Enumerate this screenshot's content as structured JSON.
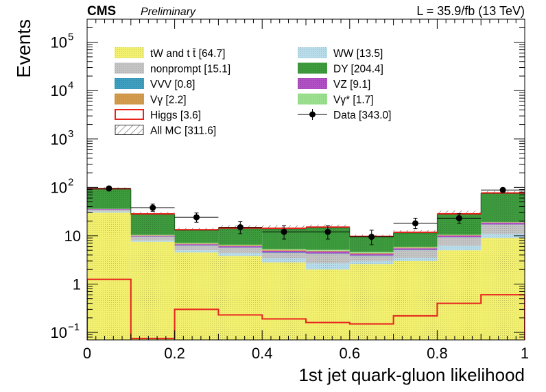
{
  "chart_data": {
    "type": "bar",
    "header_left_bold": "CMS",
    "header_left_italic": "Preliminary",
    "header_right": "L = 35.9/fb (13 TeV)",
    "xlabel": "1st jet quark-gluon likelihood",
    "ylabel": "Events",
    "xlim": [
      0,
      1
    ],
    "ylim": [
      0.07,
      300000
    ],
    "y_scale": "log",
    "x_edges": [
      0,
      0.1,
      0.2,
      0.3,
      0.4,
      0.5,
      0.6,
      0.7,
      0.8,
      0.9,
      1.0
    ],
    "x_ticks": [
      "0",
      "0.2",
      "0.4",
      "0.6",
      "0.8",
      "1"
    ],
    "y_ticks": [
      {
        "value": 0.1,
        "base": "10",
        "exp": "−1"
      },
      {
        "value": 1,
        "base": "1",
        "exp": ""
      },
      {
        "value": 10,
        "base": "10",
        "exp": ""
      },
      {
        "value": 100,
        "base": "10",
        "exp": "2"
      },
      {
        "value": 1000,
        "base": "10",
        "exp": "3"
      },
      {
        "value": 10000,
        "base": "10",
        "exp": "4"
      },
      {
        "value": 100000,
        "base": "10",
        "exp": "5"
      }
    ],
    "stack_series": [
      {
        "name": "tW and t t̄",
        "yield": "[64.7]",
        "color": "#f2f06e",
        "values": [
          30,
          7.5,
          4.5,
          3.8,
          2.8,
          2.0,
          2.6,
          3.0,
          5.0,
          9.0
        ]
      },
      {
        "name": "WW",
        "yield": "[13.5]",
        "color": "#b8dcea",
        "values": [
          1.5,
          0.5,
          0.5,
          0.6,
          0.6,
          0.7,
          0.4,
          0.5,
          1.2,
          2.0
        ]
      },
      {
        "name": "nonprompt",
        "yield": "[15.1]",
        "color": "#c4c4c4",
        "values": [
          3.0,
          1.5,
          1.2,
          1.2,
          1.0,
          1.5,
          0.8,
          1.5,
          3.0,
          6.0
        ]
      },
      {
        "name": "VVV",
        "yield": "[0.8]",
        "color": "#3e9fc0",
        "values": [
          0.1,
          0.1,
          0.1,
          0.1,
          0.1,
          0.1,
          0.1,
          0.1,
          0.1,
          0.1
        ]
      },
      {
        "name": "VZ",
        "yield": "[9.1]",
        "color": "#b14fc5",
        "values": [
          1.0,
          0.4,
          0.4,
          0.4,
          0.4,
          0.4,
          0.3,
          0.4,
          0.8,
          1.5
        ]
      },
      {
        "name": "Vγ",
        "yield": "[2.2]",
        "color": "#d39b4d",
        "values": [
          0.2,
          0.2,
          0.2,
          0.2,
          0.2,
          0.2,
          0.2,
          0.2,
          0.2,
          0.3
        ]
      },
      {
        "name": "Vγ*",
        "yield": "[1.7]",
        "color": "#9be08e",
        "values": [
          0.2,
          0.2,
          0.2,
          0.2,
          0.2,
          0.2,
          0.2,
          0.2,
          0.2,
          0.3
        ]
      },
      {
        "name": "DY",
        "yield": "[204.4]",
        "color": "#3d9a3d",
        "values": [
          55,
          17,
          5.8,
          7.5,
          8.5,
          9.5,
          4.8,
          5.5,
          17,
          55
        ]
      }
    ],
    "higgs": {
      "name": "Higgs",
      "yield": "[3.6]",
      "color": "#e8231e",
      "values": [
        1.25,
        0.075,
        0.3,
        0.23,
        0.19,
        0.16,
        0.15,
        0.22,
        0.4,
        0.6
      ]
    },
    "all_mc": {
      "name": "All MC",
      "yield": "[311.6]",
      "unc_high": [
        100,
        31,
        14.5,
        16.5,
        16.5,
        17,
        10.5,
        13,
        33,
        84
      ]
    },
    "data": {
      "name": "Data",
      "yield": "[343.0]",
      "x": [
        0.05,
        0.15,
        0.25,
        0.35,
        0.45,
        0.55,
        0.65,
        0.75,
        0.85,
        0.95
      ],
      "y": [
        95,
        38,
        24,
        15,
        12,
        12,
        9.5,
        18,
        23,
        88
      ],
      "err_low": [
        10,
        6,
        5,
        4,
        3.5,
        3.5,
        3,
        4,
        5,
        9
      ],
      "err_high": [
        10,
        7,
        5.5,
        4.5,
        4,
        4,
        3.5,
        5,
        5.5,
        10
      ]
    },
    "legend_left": [
      {
        "name": "tW and t t̄",
        "yield": "[64.7]",
        "style": "fill",
        "color": "#f2f06e"
      },
      {
        "name": "nonprompt",
        "yield": "[15.1]",
        "style": "fill",
        "color": "#c4c4c4"
      },
      {
        "name": "VVV",
        "yield": "[0.8]",
        "style": "fill",
        "color": "#3e9fc0"
      },
      {
        "name": "Vγ",
        "yield": "[2.2]",
        "style": "fill",
        "color": "#d39b4d"
      },
      {
        "name": "Higgs",
        "yield": "[3.6]",
        "style": "line",
        "color": "#e8231e"
      },
      {
        "name": "All MC",
        "yield": "[311.6]",
        "style": "hatch",
        "color": "#555555"
      }
    ],
    "legend_right": [
      {
        "name": "WW",
        "yield": "[13.5]",
        "style": "fill",
        "color": "#b8dcea"
      },
      {
        "name": "DY",
        "yield": "[204.4]",
        "style": "fill",
        "color": "#3d9a3d"
      },
      {
        "name": "VZ",
        "yield": "[9.1]",
        "style": "fill",
        "color": "#b14fc5"
      },
      {
        "name": "Vγ*",
        "yield": "[1.7]",
        "style": "fill",
        "color": "#9be08e"
      },
      {
        "name": "Data",
        "yield": "[343.0]",
        "style": "marker",
        "color": "#000000"
      }
    ]
  }
}
